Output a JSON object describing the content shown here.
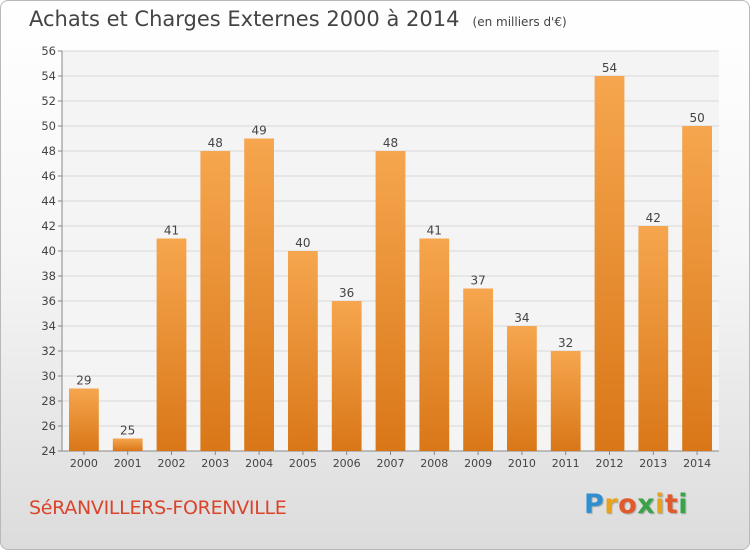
{
  "header": {
    "title": "Achats et Charges Externes 2000 à 2014",
    "unit": "(en milliers d'€)"
  },
  "footer": {
    "town": "SéRANVILLERS-FORENVILLE",
    "logo": "Proxiti"
  },
  "colors": {
    "bar_top": "#f6a64e",
    "bar_bottom": "#d97718",
    "town_text": "#d9442b",
    "grid": "#d8d8d8"
  },
  "chart_data": {
    "type": "bar",
    "title": "Achats et Charges Externes 2000 à 2014",
    "subtitle": "(en milliers d'€)",
    "categories": [
      "2000",
      "2001",
      "2002",
      "2003",
      "2004",
      "2005",
      "2006",
      "2007",
      "2008",
      "2009",
      "2010",
      "2011",
      "2012",
      "2013",
      "2014"
    ],
    "values": [
      29,
      25,
      41,
      48,
      49,
      40,
      36,
      48,
      41,
      37,
      34,
      32,
      54,
      42,
      50
    ],
    "ylim": [
      24,
      56
    ],
    "yticks": [
      24,
      26,
      28,
      30,
      32,
      34,
      36,
      38,
      40,
      42,
      44,
      46,
      48,
      50,
      52,
      54,
      56
    ],
    "grid": true,
    "data_labels": true
  }
}
